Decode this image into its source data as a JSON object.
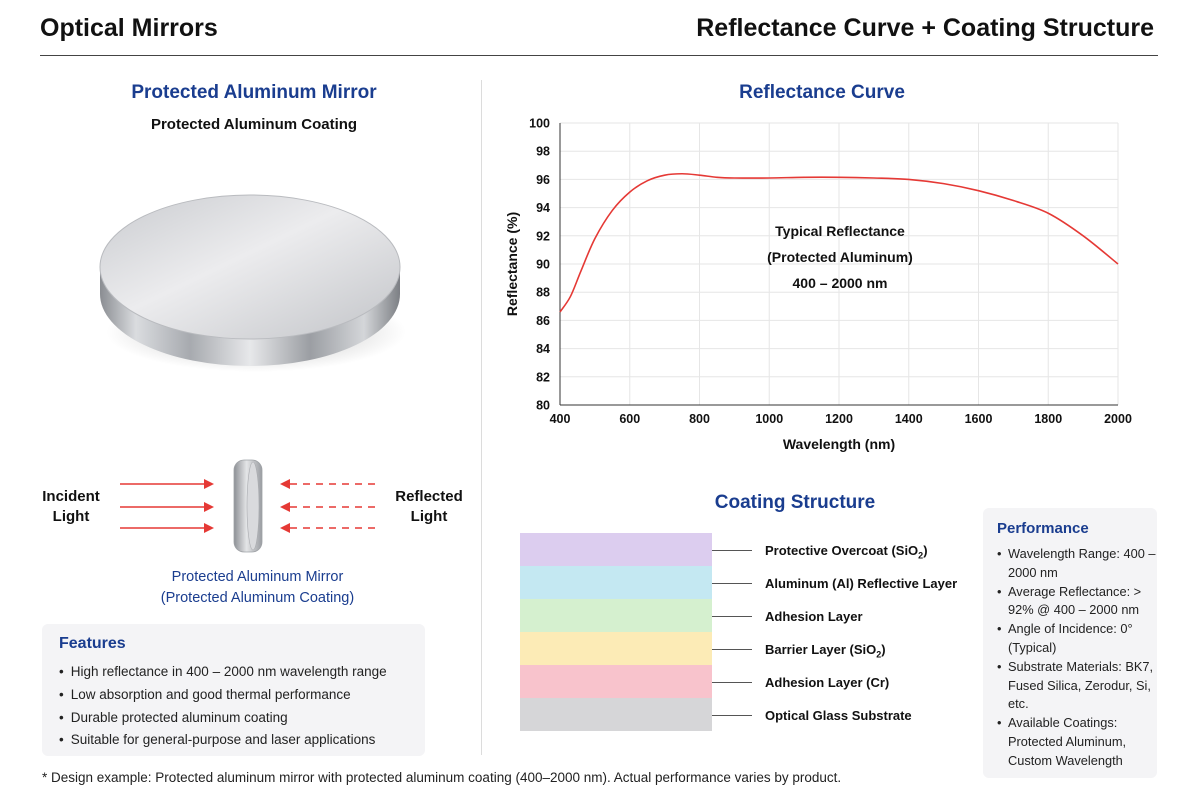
{
  "header": {
    "left_title": "Optical Mirrors",
    "right_title": "Reflectance Curve + Coating Structure"
  },
  "left_panel": {
    "title": "Protected Aluminum Mirror",
    "subtitle": "Protected Aluminum Coating",
    "incident_line1": "Incident",
    "incident_line2": "Light",
    "reflected_line1": "Reflected",
    "reflected_line2": "Light",
    "caption_line1": "Protected Aluminum Mirror",
    "caption_line2": "(Protected Aluminum Coating)",
    "features": {
      "title": "Features",
      "items": [
        "High reflectance in 400 – 2000 nm wavelength range",
        "Low absorption and good thermal performance",
        "Durable protected aluminum coating",
        "Suitable for general-purpose and laser applications"
      ]
    }
  },
  "chart_title": "Reflectance Curve",
  "chart_data": {
    "type": "line",
    "title": "Reflectance Curve",
    "xlabel": "Wavelength (nm)",
    "ylabel": "Reflectance (%)",
    "xlim": [
      400,
      2000
    ],
    "ylim": [
      80,
      100
    ],
    "xticks": [
      400,
      600,
      800,
      1000,
      1200,
      1400,
      1600,
      1800,
      2000
    ],
    "yticks": [
      80,
      82,
      84,
      86,
      88,
      90,
      92,
      94,
      96,
      98,
      100
    ],
    "grid": true,
    "line_color": "#e53935",
    "annotation": [
      "Typical Reflectance",
      "(Protected Aluminum)",
      "400 – 2000 nm"
    ],
    "series": [
      {
        "x": [
          400,
          430,
          460,
          500,
          550,
          600,
          650,
          700,
          750,
          800,
          850,
          900,
          1000,
          1100,
          1200,
          1300,
          1400,
          1500,
          1600,
          1700,
          1800,
          1900,
          2000
        ],
        "y": [
          86.6,
          87.7,
          89.5,
          91.8,
          93.8,
          95.1,
          95.9,
          96.3,
          96.4,
          96.3,
          96.15,
          96.1,
          96.1,
          96.15,
          96.15,
          96.1,
          96.0,
          95.7,
          95.2,
          94.5,
          93.6,
          92.0,
          90.0
        ]
      }
    ]
  },
  "coating": {
    "title": "Coating Structure",
    "layers": [
      {
        "label": "Protective Overcoat (SiO",
        "sub": "2",
        "end": ")",
        "color": "#dccdef"
      },
      {
        "label": "Aluminum (Al) Reflective Layer",
        "sub": "",
        "end": "",
        "color": "#c4e8f2"
      },
      {
        "label": "Adhesion Layer",
        "sub": "",
        "end": "",
        "color": "#d5f0cf"
      },
      {
        "label": "Barrier Layer (SiO",
        "sub": "2",
        "end": ")",
        "color": "#fcebb6"
      },
      {
        "label": "Adhesion Layer (Cr)",
        "sub": "",
        "end": "",
        "color": "#f8c3cc"
      },
      {
        "label": "Optical Glass Substrate",
        "sub": "",
        "end": "",
        "color": "#d6d6d8"
      }
    ]
  },
  "performance": {
    "title": "Performance",
    "items": [
      "Wavelength Range: 400 – 2000 nm",
      "Average Reflectance: > 92% @ 400 – 2000 nm",
      "Angle of Incidence: 0° (Typical)",
      "Substrate Materials: BK7, Fused Silica, Zerodur, Si, etc.",
      "Available Coatings: Protected Aluminum, Custom Wavelength"
    ]
  },
  "footnote": "* Design example: Protected aluminum mirror with protected aluminum coating (400–2000 nm). Actual performance varies by product."
}
